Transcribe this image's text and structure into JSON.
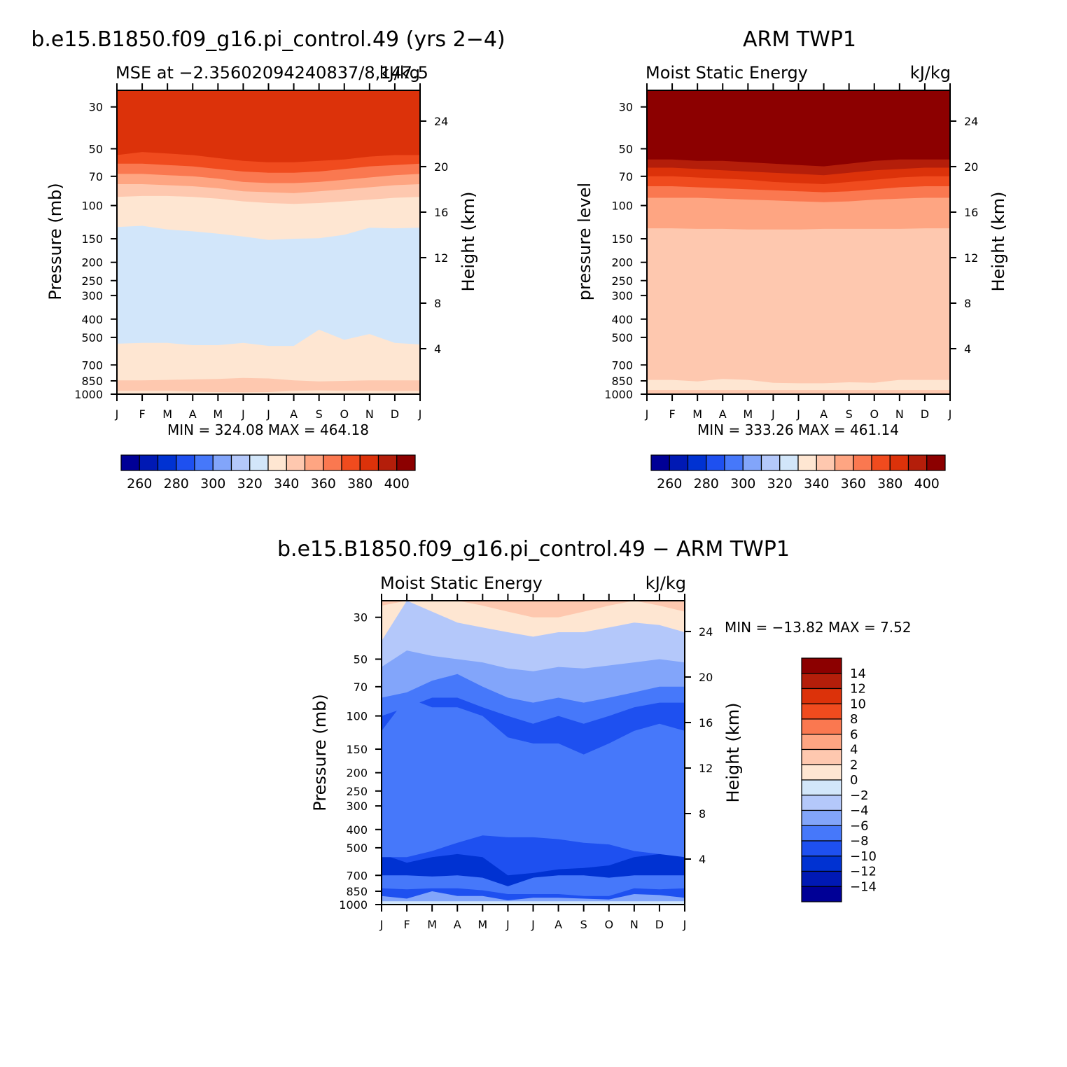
{
  "colors": {
    "levels": [
      "#000096",
      "#0019b4",
      "#0032d2",
      "#1e50f0",
      "#4678fa",
      "#82a5fa",
      "#b4c8fa",
      "#d2e6fa",
      "#fee6d2",
      "#fec8af",
      "#fea582",
      "#fa7850",
      "#f04b1e",
      "#dc320a",
      "#b41e0a",
      "#8c0000"
    ]
  },
  "shared": {
    "months": [
      "J",
      "F",
      "M",
      "A",
      "M",
      "J",
      "J",
      "A",
      "S",
      "O",
      "N",
      "D",
      "J"
    ],
    "pressure_ticks": [
      "30",
      "50",
      "70",
      "100",
      "150",
      "200",
      "250",
      "300",
      "400",
      "500",
      "700",
      "850",
      "1000"
    ],
    "height_ticks": [
      "24",
      "20",
      "16",
      "12",
      "8",
      "4"
    ]
  },
  "chart_data": [
    {
      "type": "heatmap",
      "id": "model",
      "title": "b.e15.B1850.f09_g16.pi_control.49 (yrs 2−4)",
      "left_label": "MSE at −2.35602094240837/8,147.5",
      "right_label": "kJ/kg",
      "ylabel": "Pressure (mb)",
      "y2label": "Height (km)",
      "min_max": "MIN = 324.08 MAX = 464.18",
      "colorbar_labels": [
        "260",
        "280",
        "300",
        "320",
        "340",
        "360",
        "380",
        "400"
      ],
      "months": [
        0,
        1,
        2,
        3,
        4,
        5,
        6,
        7,
        8,
        9,
        10,
        11,
        12
      ],
      "boundaries": [
        [
          960,
          960,
          960,
          970,
          975,
          978,
          975,
          960,
          955,
          960,
          960,
          965,
          960
        ],
        [
          845,
          845,
          840,
          835,
          830,
          820,
          825,
          845,
          855,
          850,
          845,
          845,
          845
        ],
        [
          540,
          535,
          535,
          550,
          550,
          535,
          555,
          555,
          455,
          515,
          480,
          535,
          545
        ],
        [
          130,
          128,
          134,
          137,
          141,
          146,
          152,
          150,
          149,
          143,
          131,
          132,
          131
        ],
        [
          90,
          89,
          89,
          90,
          92,
          95,
          97,
          98,
          97,
          95,
          93,
          91,
          90
        ],
        [
          77,
          77,
          78,
          79,
          81,
          84,
          85,
          86,
          84,
          82,
          80,
          78,
          77
        ],
        [
          68,
          68,
          69,
          70,
          72,
          75,
          76,
          76,
          75,
          73,
          71,
          69,
          68
        ],
        [
          60,
          60,
          61,
          62,
          64,
          66,
          67,
          67,
          66,
          64,
          62,
          61,
          60
        ],
        [
          54,
          52,
          53,
          54,
          56,
          58,
          59,
          59,
          58,
          57,
          55,
          54,
          54
        ]
      ],
      "band_colors": [
        8,
        9,
        8,
        7,
        8,
        9,
        10,
        11,
        12,
        13,
        14,
        15
      ]
    },
    {
      "type": "heatmap",
      "id": "obs",
      "title": "ARM TWP1",
      "left_label": "Moist Static Energy",
      "right_label": "kJ/kg",
      "ylabel": "pressure level",
      "y2label": "Height (km)",
      "min_max": "MIN = 333.26 MAX = 461.14",
      "colorbar_labels": [
        "260",
        "280",
        "300",
        "320",
        "340",
        "360",
        "380",
        "400"
      ],
      "months": [
        0,
        1,
        2,
        3,
        4,
        5,
        6,
        7,
        8,
        9,
        10,
        11,
        12
      ],
      "boundaries": [
        [
          950,
          950,
          950,
          950,
          950,
          950,
          950,
          950,
          950,
          950,
          950,
          950,
          950
        ],
        [
          840,
          840,
          855,
          830,
          840,
          870,
          875,
          875,
          865,
          870,
          840,
          840,
          840
        ],
        [
          375,
          375,
          365,
          350,
          350,
          315,
          305,
          295,
          310,
          295,
          345,
          345,
          375
        ],
        [
          132,
          132,
          133,
          133,
          134,
          134,
          134,
          133,
          133,
          133,
          133,
          132,
          132
        ],
        [
          91,
          91,
          91,
          92,
          93,
          94,
          95,
          96,
          95,
          93,
          92,
          91,
          91
        ],
        [
          79,
          79,
          80,
          81,
          82,
          83,
          84,
          85,
          84,
          82,
          80,
          79,
          79
        ],
        [
          70,
          70,
          71,
          72,
          73,
          75,
          76,
          77,
          75,
          73,
          71,
          70,
          70
        ],
        [
          63,
          63,
          64,
          65,
          66,
          67,
          68,
          69,
          67,
          65,
          64,
          63,
          63
        ],
        [
          57,
          57,
          58,
          58,
          59,
          60,
          61,
          62,
          60,
          58,
          57,
          57,
          57
        ]
      ],
      "band_colors": [
        9,
        8,
        9,
        9,
        10,
        11,
        12,
        13,
        14,
        15
      ]
    },
    {
      "type": "heatmap",
      "id": "diff",
      "title": "b.e15.B1850.f09_g16.pi_control.49 − ARM TWP1",
      "left_label": "Moist Static Energy",
      "right_label": "kJ/kg",
      "ylabel": "Pressure (mb)",
      "y2label": "Height (km)",
      "min_max": "MIN = −13.82 MAX =    7.52",
      "colorbar_labels": [
        "14",
        "12",
        "10",
        "8",
        "6",
        "4",
        "2",
        "0",
        "−2",
        "−4",
        "−6",
        "−8",
        "−10",
        "−12",
        "−14"
      ],
      "months": [
        0,
        1,
        2,
        3,
        4,
        5,
        6,
        7,
        8,
        9,
        10,
        11,
        12
      ],
      "boundaries": [
        [
          960,
          960,
          960,
          960,
          960,
          960,
          960,
          960,
          960,
          960,
          960,
          960,
          960
        ],
        [
          900,
          930,
          850,
          900,
          900,
          950,
          920,
          920,
          930,
          940,
          880,
          890,
          920
        ],
        [
          820,
          830,
          820,
          820,
          840,
          880,
          880,
          880,
          900,
          900,
          820,
          830,
          820
        ],
        [
          700,
          700,
          710,
          700,
          720,
          800,
          720,
          700,
          700,
          720,
          700,
          700,
          700
        ],
        [
          540,
          600,
          560,
          540,
          560,
          700,
          680,
          650,
          640,
          620,
          560,
          540,
          550
        ],
        [
          560,
          560,
          520,
          470,
          430,
          440,
          440,
          450,
          470,
          480,
          520,
          540,
          560
        ],
        [
          120,
          80,
          90,
          90,
          100,
          130,
          140,
          140,
          160,
          140,
          120,
          110,
          120
        ],
        [
          100,
          90,
          80,
          80,
          90,
          100,
          110,
          100,
          110,
          100,
          90,
          85,
          85
        ],
        [
          80,
          75,
          65,
          60,
          70,
          80,
          85,
          80,
          85,
          80,
          75,
          70,
          70
        ],
        [
          55,
          45,
          48,
          50,
          52,
          56,
          58,
          55,
          56,
          54,
          52,
          50,
          52
        ],
        [
          40,
          22,
          28,
          32,
          34,
          36,
          38,
          36,
          36,
          34,
          32,
          33,
          36
        ],
        [
          26,
          18,
          22,
          24,
          26,
          28,
          30,
          30,
          28,
          26,
          24,
          26,
          28
        ]
      ],
      "band_colors": [
        7,
        5,
        3,
        4,
        2,
        3,
        4,
        3,
        4,
        5,
        6,
        8,
        9
      ]
    }
  ]
}
